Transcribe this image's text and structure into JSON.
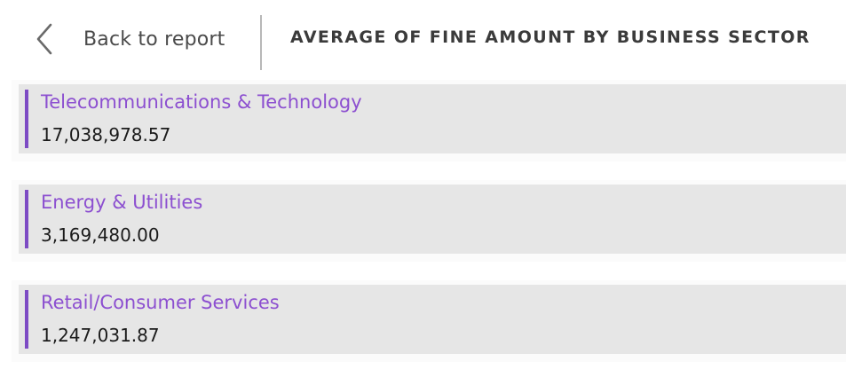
{
  "header": {
    "back_label": "Back to report",
    "title": "AVERAGE OF FINE AMOUNT BY BUSINESS SECTOR",
    "back_icon": "chevron-left-icon"
  },
  "items": [
    {
      "label": "Telecommunications & Technology",
      "value": "17,038,978.57"
    },
    {
      "label": "Energy & Utilities",
      "value": "3,169,480.00"
    },
    {
      "label": "Retail/Consumer Services",
      "value": "1,247,031.87"
    }
  ],
  "colors": {
    "accent": "#7d4bc4",
    "label": "#8c4fd0",
    "card_background": "#e6e6e6"
  }
}
